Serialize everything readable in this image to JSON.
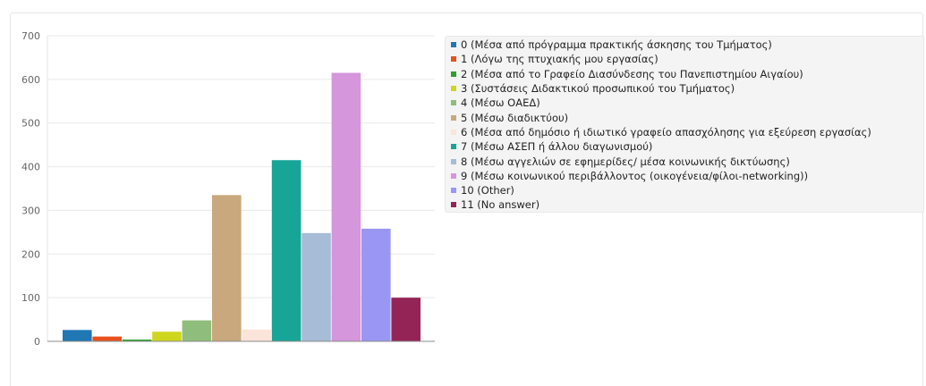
{
  "chart_data": {
    "type": "bar",
    "ylim": [
      0,
      700
    ],
    "yticks": [
      0,
      100,
      200,
      300,
      400,
      500,
      600,
      700
    ],
    "grid": true,
    "legend_placement": "right",
    "series": [
      {
        "label": "0 (Μέσα από πρόγραμμα πρακτικής άσκησης του Τμήματος)",
        "value": 26,
        "color": "#1f77b4"
      },
      {
        "label": "1 (Λόγω της πτυχιακής μου εργασίας)",
        "value": 11,
        "color": "#e8501e"
      },
      {
        "label": "2 (Μέσα από το Γραφείο Διασύνδεσης του Πανεπιστημίου Αιγαίου)",
        "value": 4,
        "color": "#2ca02c"
      },
      {
        "label": "3 (Συστάσεις Διδακτικού προσωπικού του Τμήματος)",
        "value": 22,
        "color": "#cfd61e"
      },
      {
        "label": "4 (Μέσω ΟΑΕΔ)",
        "value": 48,
        "color": "#8fbd7b"
      },
      {
        "label": "5 (Μέσω διαδικτύου)",
        "value": 335,
        "color": "#c8a87c"
      },
      {
        "label": "6 (Μέσα από δημόσιο ή ιδιωτικό γραφείο απασχόλησης για εξεύρεση εργασίας)",
        "value": 27,
        "color": "#fbe4da"
      },
      {
        "label": "7 (Μέσω ΑΣΕΠ ή άλλου διαγωνισμού)",
        "value": 415,
        "color": "#17a598"
      },
      {
        "label": "8 (Μέσω αγγελιών σε εφημερίδες/ μέσα κοινωνικής δικτύωσης)",
        "value": 248,
        "color": "#a7bcd6"
      },
      {
        "label": "9 (Μέσω κοινωνικού περιβάλλοντος (οικογένεια/φίλοι-networking))",
        "value": 615,
        "color": "#d596dc"
      },
      {
        "label": "10 (Other)",
        "value": 258,
        "color": "#9a97f4"
      },
      {
        "label": "11 (No answer)",
        "value": 100,
        "color": "#952456"
      }
    ]
  }
}
